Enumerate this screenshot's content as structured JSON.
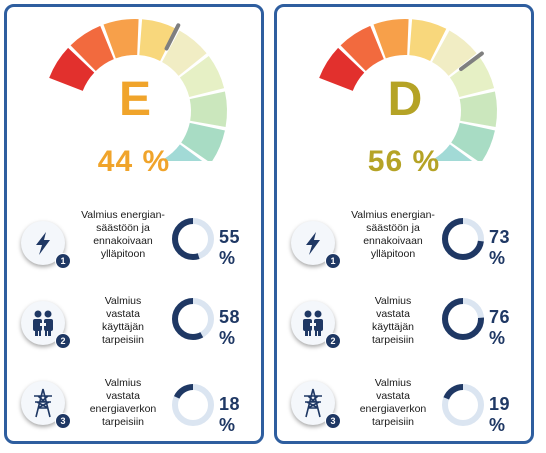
{
  "colors": {
    "border": "#2e5e9f",
    "navy": "#1f3864",
    "ring_track": "#dbe5f1",
    "segments": [
      "#e2302d",
      "#f26a3e",
      "#f7a04a",
      "#f8d77c",
      "#f1edc4",
      "#e6f0c5",
      "#cbe7bd",
      "#a8dcc4",
      "#a2dad6"
    ]
  },
  "panels": [
    {
      "grade": "E",
      "grade_color": "#f0a42b",
      "percent": "44 %",
      "percent_color": "#f0a42b",
      "level": 0.44,
      "metrics": [
        {
          "number": "1",
          "icon": "lightning-icon",
          "label": [
            "Valmius energian-",
            "säästöön ja",
            "ennakoivaan",
            "ylläpitoon"
          ],
          "value": "55 %",
          "fraction": 0.55
        },
        {
          "number": "2",
          "icon": "people-icon",
          "label": [
            "Valmius",
            "vastata",
            "käyttäjän",
            "tarpeisiin"
          ],
          "value": "58 %",
          "fraction": 0.58
        },
        {
          "number": "3",
          "icon": "power-tower-icon",
          "label": [
            "Valmius",
            "vastata",
            "energiaverkon",
            "tarpeisiin"
          ],
          "value": "18 %",
          "fraction": 0.18
        }
      ]
    },
    {
      "grade": "D",
      "grade_color": "#b5a326",
      "percent": "56 %",
      "percent_color": "#b5a326",
      "level": 0.56,
      "metrics": [
        {
          "number": "1",
          "icon": "lightning-icon",
          "label": [
            "Valmius energian-",
            "säästöön ja",
            "ennakoivaan",
            "ylläpitoon"
          ],
          "value": "73 %",
          "fraction": 0.73
        },
        {
          "number": "2",
          "icon": "people-icon",
          "label": [
            "Valmius",
            "vastata",
            "käyttäjän",
            "tarpeisiin"
          ],
          "value": "76 %",
          "fraction": 0.76
        },
        {
          "number": "3",
          "icon": "power-tower-icon",
          "label": [
            "Valmius",
            "vastata",
            "energiaverkon",
            "tarpeisiin"
          ],
          "value": "19 %",
          "fraction": 0.19
        }
      ]
    }
  ]
}
